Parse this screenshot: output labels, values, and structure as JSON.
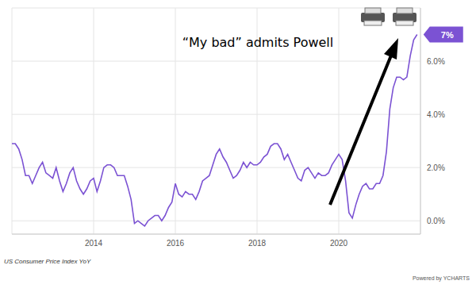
{
  "chart_data": {
    "type": "line",
    "caption": "US Consumer Price Index YoY",
    "credit": "Powered by YCHARTS",
    "annotations": [
      {
        "text": "“My bad” admits Powell"
      },
      {
        "text": "7%",
        "x": 2021.917,
        "y": 7
      }
    ],
    "x": [
      2012,
      2012.083,
      2012.167,
      2012.25,
      2012.333,
      2012.417,
      2012.5,
      2012.583,
      2012.667,
      2012.75,
      2012.833,
      2012.917,
      2013,
      2013.083,
      2013.167,
      2013.25,
      2013.333,
      2013.417,
      2013.5,
      2013.583,
      2013.667,
      2013.75,
      2013.833,
      2013.917,
      2014,
      2014.083,
      2014.167,
      2014.25,
      2014.333,
      2014.417,
      2014.5,
      2014.583,
      2014.667,
      2014.75,
      2014.833,
      2014.917,
      2015,
      2015.083,
      2015.167,
      2015.25,
      2015.333,
      2015.417,
      2015.5,
      2015.583,
      2015.667,
      2015.75,
      2015.833,
      2015.917,
      2016,
      2016.083,
      2016.167,
      2016.25,
      2016.333,
      2016.417,
      2016.5,
      2016.583,
      2016.667,
      2016.75,
      2016.833,
      2016.917,
      2017,
      2017.083,
      2017.167,
      2017.25,
      2017.333,
      2017.417,
      2017.5,
      2017.583,
      2017.667,
      2017.75,
      2017.833,
      2017.917,
      2018,
      2018.083,
      2018.167,
      2018.25,
      2018.333,
      2018.417,
      2018.5,
      2018.583,
      2018.667,
      2018.75,
      2018.833,
      2018.917,
      2019,
      2019.083,
      2019.167,
      2019.25,
      2019.333,
      2019.417,
      2019.5,
      2019.583,
      2019.667,
      2019.75,
      2019.833,
      2019.917,
      2020,
      2020.083,
      2020.167,
      2020.25,
      2020.333,
      2020.417,
      2020.5,
      2020.583,
      2020.667,
      2020.75,
      2020.833,
      2020.917,
      2021,
      2021.083,
      2021.167,
      2021.25,
      2021.333,
      2021.417,
      2021.5,
      2021.583,
      2021.667,
      2021.75,
      2021.833,
      2021.917
    ],
    "values": [
      2.9,
      2.9,
      2.7,
      2.3,
      1.7,
      1.7,
      1.4,
      1.7,
      2.0,
      2.2,
      1.8,
      1.7,
      1.6,
      2.0,
      1.5,
      1.1,
      1.4,
      1.8,
      2.0,
      1.5,
      1.2,
      1.0,
      1.2,
      1.5,
      1.6,
      1.1,
      1.5,
      2.0,
      2.1,
      2.1,
      2.0,
      1.7,
      1.7,
      1.7,
      1.3,
      0.8,
      -0.1,
      0.0,
      -0.1,
      -0.2,
      0.0,
      0.1,
      0.2,
      0.2,
      0.0,
      0.2,
      0.5,
      0.7,
      1.4,
      1.0,
      0.9,
      1.1,
      1.0,
      1.0,
      0.8,
      1.1,
      1.5,
      1.6,
      1.7,
      2.1,
      2.5,
      2.7,
      2.4,
      2.2,
      1.9,
      1.6,
      1.7,
      1.9,
      2.2,
      2.0,
      2.2,
      2.1,
      2.1,
      2.2,
      2.4,
      2.5,
      2.8,
      2.9,
      2.9,
      2.7,
      2.3,
      2.5,
      2.2,
      1.9,
      1.6,
      1.5,
      1.9,
      2.0,
      1.8,
      1.6,
      1.8,
      1.7,
      1.7,
      1.8,
      2.1,
      2.3,
      2.5,
      2.3,
      1.5,
      0.3,
      0.1,
      0.6,
      1.0,
      1.3,
      1.4,
      1.2,
      1.2,
      1.4,
      1.4,
      1.7,
      2.6,
      4.2,
      5.0,
      5.4,
      5.4,
      5.3,
      5.4,
      6.2,
      6.8,
      7.0
    ],
    "color": "#7b52d3",
    "marker": "none",
    "line_style": "solid",
    "xlim": [
      2012,
      2022
    ],
    "xticks": [
      2014,
      2016,
      2018,
      2020
    ],
    "ylim": [
      -0.5,
      8
    ],
    "yticks": [
      {
        "value": 0,
        "label": "0.0%"
      },
      {
        "value": 2,
        "label": "2.0%"
      },
      {
        "value": 4,
        "label": "4.0%"
      },
      {
        "value": 6,
        "label": "6.0%"
      }
    ],
    "grid": true
  }
}
